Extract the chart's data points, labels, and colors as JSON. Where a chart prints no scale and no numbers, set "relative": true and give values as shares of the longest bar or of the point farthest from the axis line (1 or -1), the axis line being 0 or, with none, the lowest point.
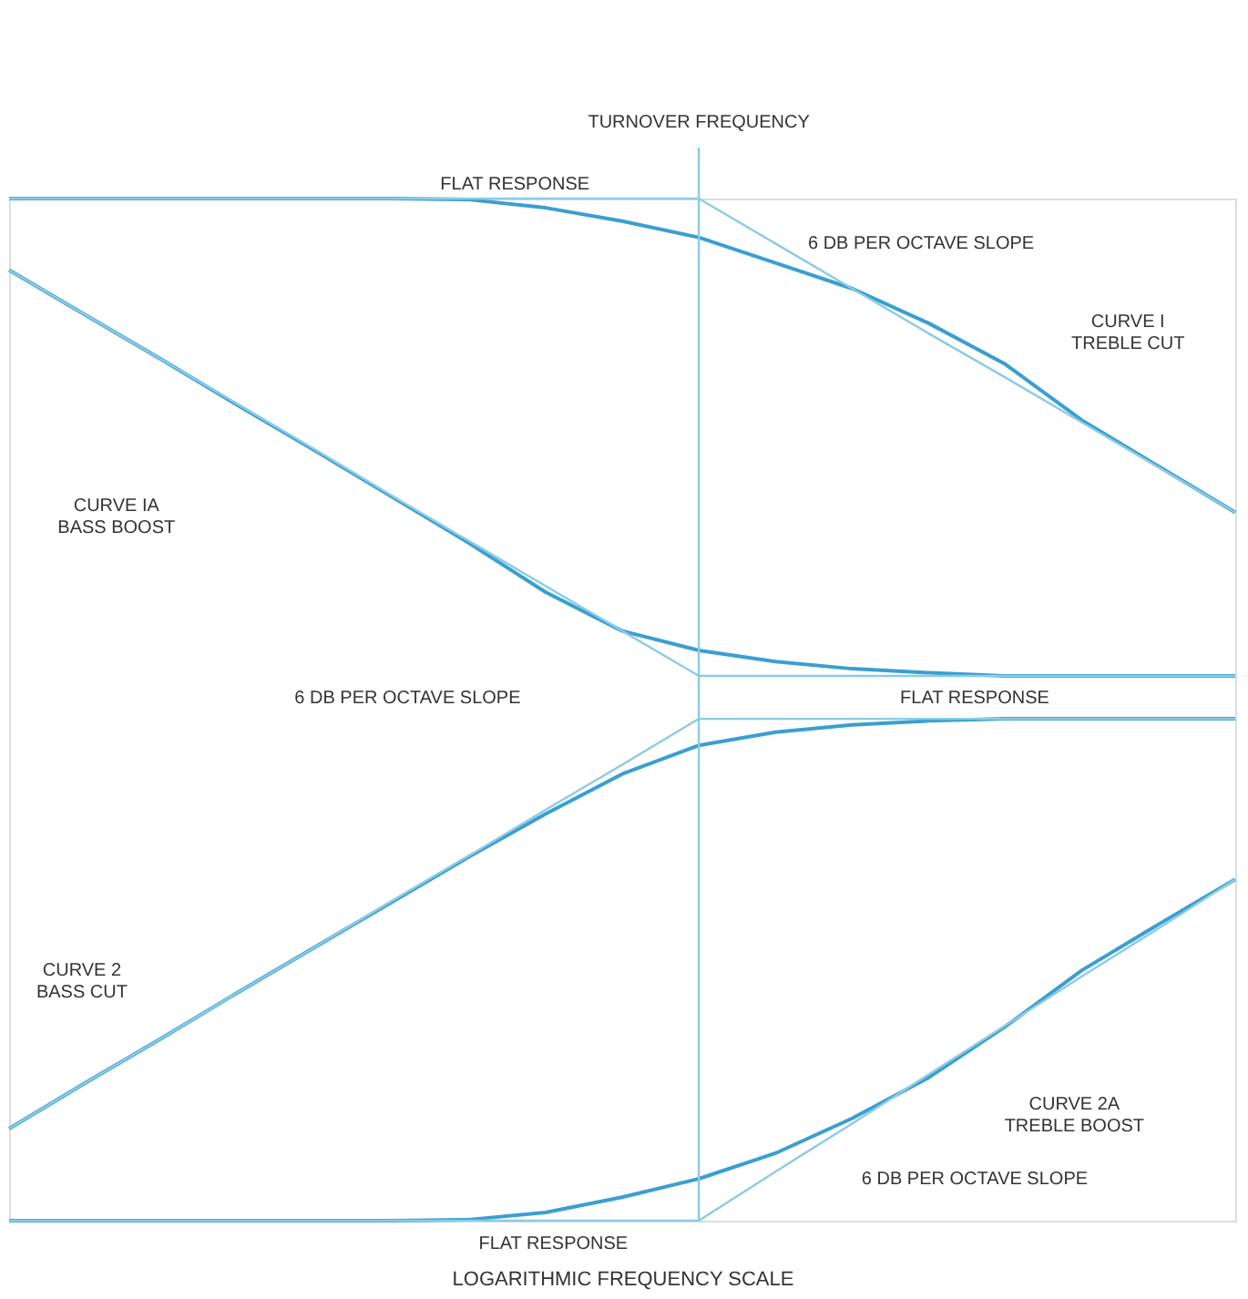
{
  "chart_data": {
    "type": "line",
    "relative": true,
    "xlabel": "LOGARITHMIC FREQUENCY SCALE",
    "grid": false,
    "tick_labels": false,
    "marker": "none",
    "categories": [
      null,
      null,
      null,
      null,
      null,
      null,
      null,
      null,
      null,
      null,
      null,
      null,
      null,
      null,
      null,
      null,
      null
    ],
    "series": [
      {
        "color": "#3a9fd0",
        "values": [
          1.0,
          1.0,
          1.0,
          1.0,
          1.0,
          1.0,
          0.999,
          0.991,
          0.978,
          0.962,
          0.937,
          0.912,
          0.878,
          0.838,
          0.783,
          0.738,
          0.693
        ]
      },
      {
        "color": "#8ccbe6",
        "values": [
          1.0,
          1.0,
          1.0,
          1.0,
          1.0,
          1.0,
          1.0,
          1.0,
          1.0,
          1.0,
          0.956,
          0.912,
          0.868,
          0.825,
          0.781,
          0.737,
          0.693
        ]
      },
      {
        "color": "#3a9fd0",
        "values": [
          0.93,
          0.886,
          0.842,
          0.797,
          0.753,
          0.708,
          0.663,
          0.615,
          0.577,
          0.558,
          0.547,
          0.54,
          0.536,
          0.533,
          0.533,
          0.533,
          0.533
        ]
      },
      {
        "color": "#8ccbe6",
        "values": [
          0.93,
          0.886,
          0.842,
          0.798,
          0.754,
          0.709,
          0.665,
          0.621,
          0.577,
          0.533,
          0.533,
          0.533,
          0.533,
          0.533,
          0.533,
          0.533,
          0.533
        ]
      },
      {
        "color": "#3a9fd0",
        "values": [
          0.09,
          0.135,
          0.179,
          0.224,
          0.268,
          0.312,
          0.356,
          0.398,
          0.437,
          0.465,
          0.478,
          0.485,
          0.489,
          0.491,
          0.491,
          0.491,
          0.491
        ]
      },
      {
        "color": "#8ccbe6",
        "values": [
          0.09,
          0.135,
          0.179,
          0.224,
          0.268,
          0.313,
          0.357,
          0.402,
          0.446,
          0.491,
          0.491,
          0.491,
          0.491,
          0.491,
          0.491,
          0.491,
          0.491
        ]
      },
      {
        "color": "#3a9fd0",
        "values": [
          0,
          0,
          0,
          0,
          0,
          0,
          0.001,
          0.008,
          0.023,
          0.041,
          0.066,
          0.1,
          0.14,
          0.19,
          0.245,
          0.29,
          0.334
        ]
      },
      {
        "color": "#8ccbe6",
        "values": [
          0,
          0,
          0,
          0,
          0,
          0,
          0,
          0,
          0,
          0,
          0.048,
          0.095,
          0.143,
          0.191,
          0.239,
          0.286,
          0.334
        ]
      }
    ],
    "annotations": [
      "FLAT RESPONSE",
      "6 DB PER OCTAVE SLOPE",
      "CURVE I\nTREBLE CUT",
      "CURVE IA\nBASS BOOST",
      "6 DB PER OCTAVE SLOPE",
      "FLAT RESPONSE",
      "CURVE 2\nBASS CUT",
      "CURVE 2A\nTREBLE BOOST",
      "6 DB PER OCTAVE SLOPE",
      "FLAT RESPONSE",
      "TURNOVER FREQUENCY"
    ]
  }
}
